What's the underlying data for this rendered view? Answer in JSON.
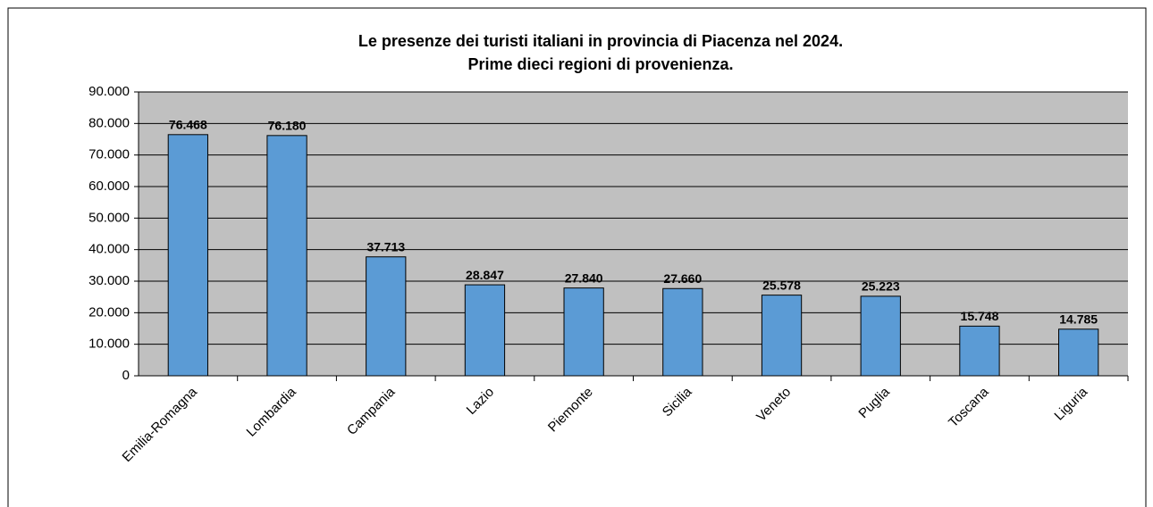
{
  "chart_data": {
    "type": "bar",
    "title": "Le presenze dei turisti italiani in provincia di Piacenza nel 2024.",
    "subtitle": "Prime dieci regioni di provenienza.",
    "categories": [
      "Emilia-Romagna",
      "Lombardia",
      "Campania",
      "Lazio",
      "Piemonte",
      "Sicilia",
      "Veneto",
      "Puglia",
      "Toscana",
      "Liguria"
    ],
    "values": [
      76468,
      76180,
      37713,
      28847,
      27840,
      27660,
      25578,
      25223,
      15748,
      14785
    ],
    "value_labels": [
      "76.468",
      "76.180",
      "37.713",
      "28.847",
      "27.840",
      "27.660",
      "25.578",
      "25.223",
      "15.748",
      "14.785"
    ],
    "color": "#5b9bd5",
    "ylim": [
      0,
      90000
    ],
    "yticks": [
      0,
      {
        "value": 10000,
        "label": "10.000"
      },
      {
        "value": 20000,
        "label": "20.000"
      },
      {
        "value": 30000,
        "label": "30.000"
      },
      {
        "value": 40000,
        "label": "40.000"
      },
      {
        "value": 50000,
        "label": "50.000"
      },
      {
        "value": 60000,
        "label": "60.000"
      },
      {
        "value": 70000,
        "label": "70.000"
      },
      {
        "value": 80000,
        "label": "80.000"
      },
      {
        "value": 90000,
        "label": "90.000"
      }
    ],
    "grid": true
  }
}
